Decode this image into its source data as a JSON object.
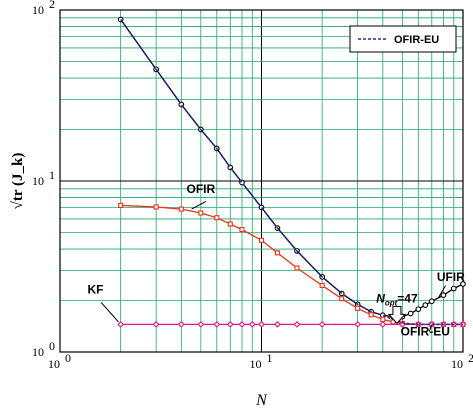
{
  "chart_data": {
    "type": "line",
    "xscale": "log",
    "yscale": "log",
    "xlim": [
      1,
      100
    ],
    "ylim": [
      1,
      100
    ],
    "grid": true,
    "legend_placement": "top-right",
    "xlabel": "N",
    "ylabel": "√tr (J_k)",
    "x_ticks": [
      1,
      10,
      100
    ],
    "x_tick_labels": [
      "10",
      "10",
      "10"
    ],
    "x_tick_exponents": [
      "0",
      "1",
      "2"
    ],
    "y_ticks": [
      1,
      10,
      100
    ],
    "y_tick_labels": [
      "10",
      "10",
      "10"
    ],
    "y_tick_exponents": [
      "0",
      "1",
      "2"
    ],
    "series": [
      {
        "name": "UFIR",
        "color": "#000000",
        "marker": "circle",
        "x": [
          2,
          3,
          4,
          5,
          6,
          7,
          8,
          10,
          12,
          15,
          20,
          25,
          30,
          35,
          40,
          45,
          47,
          50,
          55,
          60,
          65,
          70,
          80,
          90,
          100
        ],
        "y": [
          88,
          45,
          28,
          20,
          15.5,
          12,
          9.8,
          7.0,
          5.3,
          3.9,
          2.75,
          2.2,
          1.9,
          1.72,
          1.64,
          1.61,
          1.6,
          1.61,
          1.68,
          1.78,
          1.88,
          1.98,
          2.15,
          2.35,
          2.5
        ]
      },
      {
        "name": "OFIR",
        "color": "#e8341c",
        "marker": "square",
        "x": [
          2,
          3,
          4,
          5,
          6,
          7,
          8,
          10,
          12,
          15,
          20,
          25,
          30,
          35,
          40,
          45,
          50,
          60,
          70,
          80,
          90,
          100
        ],
        "y": [
          7.2,
          7.05,
          6.85,
          6.5,
          6.1,
          5.6,
          5.2,
          4.5,
          3.8,
          3.1,
          2.45,
          2.05,
          1.8,
          1.65,
          1.55,
          1.5,
          1.47,
          1.45,
          1.45,
          1.45,
          1.45,
          1.45
        ]
      },
      {
        "name": "KF",
        "color": "#e0168c",
        "marker": "diamond",
        "x": [
          2,
          3,
          4,
          5,
          6,
          7,
          8,
          9,
          10,
          12,
          15,
          20,
          30,
          40,
          50,
          60,
          70,
          80,
          90,
          100
        ],
        "y": [
          1.45,
          1.45,
          1.45,
          1.45,
          1.45,
          1.45,
          1.45,
          1.45,
          1.45,
          1.45,
          1.45,
          1.45,
          1.45,
          1.45,
          1.45,
          1.45,
          1.45,
          1.45,
          1.45,
          1.45
        ]
      },
      {
        "name": "OFIR-EU",
        "color": "#2a2a9a",
        "dashed": true,
        "x": [
          2,
          3,
          4,
          5,
          6,
          7,
          8,
          10,
          12,
          15,
          20,
          25,
          30,
          35,
          40,
          45,
          50,
          55,
          60,
          65,
          70,
          80,
          90,
          100
        ],
        "y": [
          88,
          45,
          28,
          20,
          15.5,
          12,
          9.8,
          7.0,
          5.3,
          3.9,
          2.75,
          2.2,
          1.9,
          1.72,
          1.64,
          1.55,
          1.48,
          1.46,
          1.45,
          1.45,
          1.45,
          1.45,
          1.45,
          1.45
        ]
      }
    ],
    "legend": [
      {
        "label": "OFIR-EU",
        "color": "#2a2a9a",
        "dashed": true
      }
    ],
    "annotations": [
      {
        "text": "OFIR",
        "x": 5,
        "y": 8.5
      },
      {
        "text": "KF",
        "x": 1.5,
        "y": 2.2
      },
      {
        "text": "UFIR",
        "x": 87,
        "y": 2.6
      },
      {
        "text": "OFIR-EU",
        "x": 65,
        "y": 1.25
      },
      {
        "text": "N",
        "subscript": "opt",
        "suffix": "=47",
        "x": 47,
        "y": 1.95
      }
    ]
  }
}
